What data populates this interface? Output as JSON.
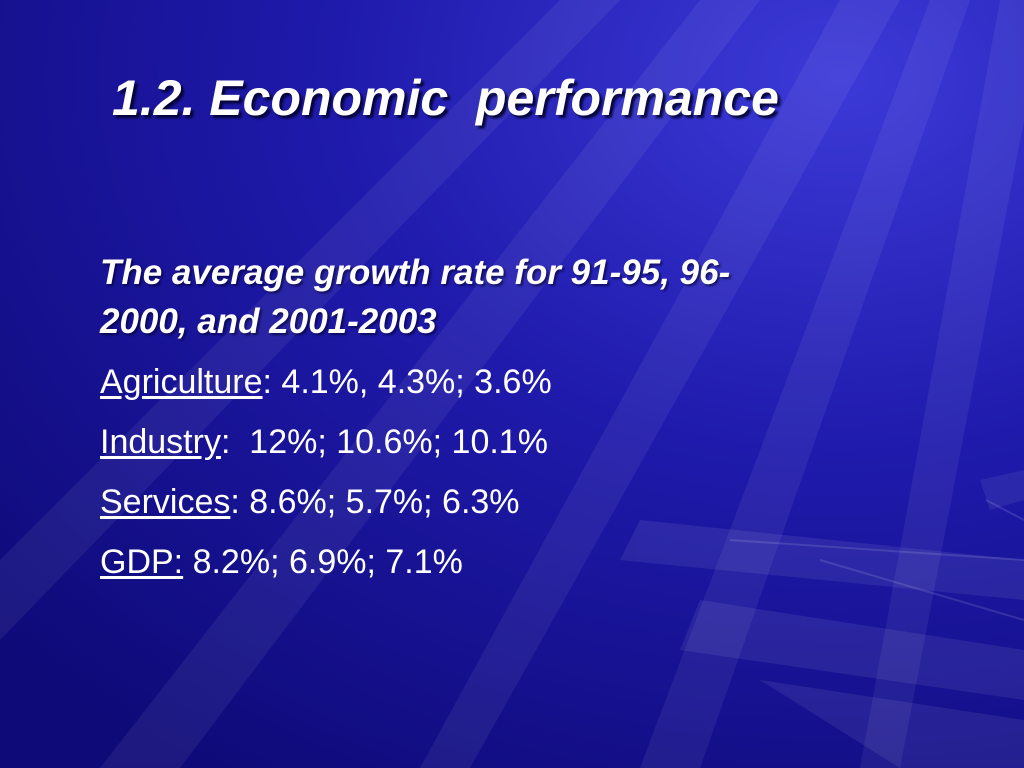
{
  "slide": {
    "title": "1.2. Economic  performance",
    "heading_line1": "The average growth rate for 91-95, 96-",
    "heading_line2": "2000, and 2001-2003",
    "rows": [
      {
        "label": "Agriculture",
        "value": ": 4.1%, 4.3%; 3.6%"
      },
      {
        "label": "Industry",
        "value": ":  12%; 10.6%; 10.1%"
      },
      {
        "label": "Services",
        "value": ": 8.6%; 5.7%; 6.3%"
      },
      {
        "label": "GDP:",
        "value": " 8.2%; 6.9%; 7.1%"
      }
    ]
  },
  "colors": {
    "background": "#1a14a0",
    "text": "#ffffff"
  }
}
